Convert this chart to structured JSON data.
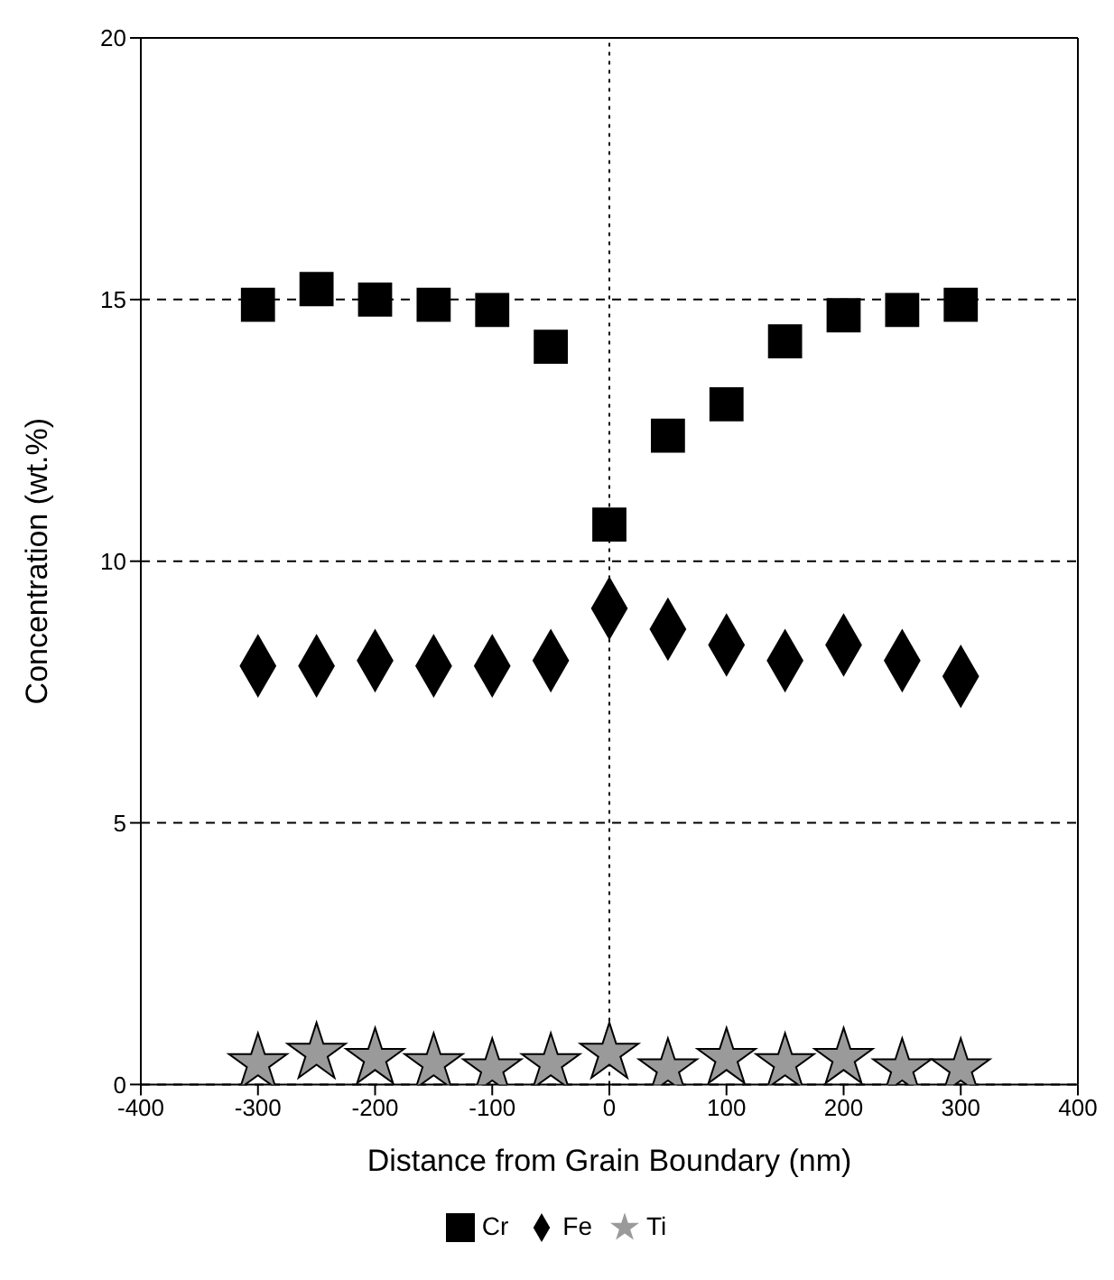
{
  "chart_data": {
    "type": "scatter",
    "xlabel": "Distance from Grain Boundary (nm)",
    "ylabel": "Concentration (wt.%)",
    "x": [
      -300,
      -250,
      -200,
      -150,
      -100,
      -50,
      0,
      50,
      100,
      150,
      200,
      250,
      300
    ],
    "series": [
      {
        "name": "Cr",
        "color": "#000000",
        "marker": "square",
        "values": [
          14.9,
          15.2,
          15.0,
          14.9,
          14.8,
          14.1,
          10.7,
          12.4,
          13.0,
          14.2,
          14.7,
          14.8,
          14.9
        ]
      },
      {
        "name": "Fe",
        "color": "#000000",
        "marker": "diamond",
        "values": [
          8.0,
          8.0,
          8.1,
          8.0,
          8.0,
          8.1,
          9.1,
          8.7,
          8.4,
          8.1,
          8.4,
          8.1,
          7.8
        ]
      },
      {
        "name": "Ti",
        "color": "#9a9a9a",
        "marker": "star",
        "values": [
          0.4,
          0.6,
          0.5,
          0.4,
          0.3,
          0.4,
          0.6,
          0.3,
          0.5,
          0.4,
          0.5,
          0.3,
          0.3
        ]
      }
    ],
    "xlim": [
      -400,
      400
    ],
    "xticks": [
      -400,
      -300,
      -200,
      -100,
      0,
      100,
      200,
      300,
      400
    ],
    "ylim": [
      0,
      20
    ],
    "yticks": [
      0,
      5,
      10,
      15,
      20
    ],
    "grid": "y",
    "line_style": "dashed",
    "ref_lines": [
      {
        "axis": "x",
        "value": 0,
        "line_style": "dotted"
      }
    ],
    "legend": "bottom"
  }
}
